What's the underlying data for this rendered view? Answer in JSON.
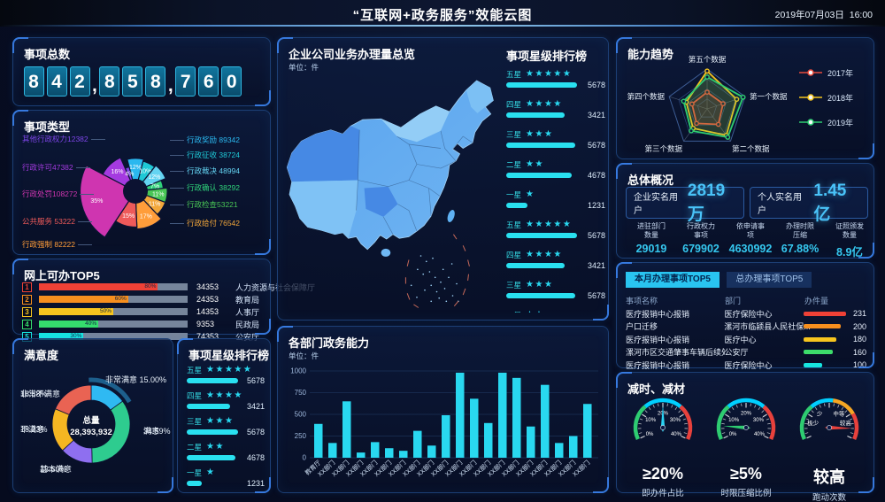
{
  "header": {
    "title": "“互联网+政务服务”效能云图",
    "datetime": "2019年07月03日  16:00"
  },
  "total_panel": {
    "title": "事项总数",
    "value": "842,858,760"
  },
  "rose_panel": {
    "title": "事项类型"
  },
  "online_panel": {
    "title": "网上可办TOP5"
  },
  "satisfaction_panel": {
    "title": "满意度",
    "center_label": "总量",
    "center_value": "28,393,932"
  },
  "star_left_panel": {
    "title": "事项星级排行榜"
  },
  "map_panel": {
    "title": "企业公司业务办理量总览",
    "unit": "单位：件"
  },
  "star_mid_panel": {
    "title": "事项星级排行榜"
  },
  "dept_panel": {
    "title": "各部门政务能力",
    "unit": "单位：件"
  },
  "radar_panel": {
    "title": "能力趋势"
  },
  "overview_panel": {
    "title": "总体概况",
    "boxes": [
      {
        "label": "企业实名用户",
        "value": "2819万"
      },
      {
        "label": "个人实名用户",
        "value": "1.45亿"
      }
    ],
    "stats": [
      {
        "line1": "进驻部门",
        "line2": "数量",
        "value": "29019"
      },
      {
        "line1": "行政权力",
        "line2": "事项",
        "value": "679902"
      },
      {
        "line1": "依申请事",
        "line2": "项",
        "value": "4630992"
      },
      {
        "line1": "办理时限",
        "line2": "压缩",
        "value": "67.88%"
      },
      {
        "line1": "证照颁发",
        "line2": "数量",
        "value": "8.9亿"
      }
    ]
  },
  "top5_panel": {
    "tabs": [
      {
        "label": "本月办理事项TOP5",
        "active": true
      },
      {
        "label": "总办理事项TOP5",
        "active": false
      }
    ]
  },
  "gauge_panel": {
    "title": "减时、减材"
  },
  "chart_data": [
    {
      "id": "item_types_rose",
      "type": "pie",
      "subtype": "nightingale-rose",
      "title": "事项类型",
      "slices": [
        {
          "label": "行政奖励",
          "value": 89342,
          "pct": 12,
          "color": "#2bb8ef",
          "display": "行政奖励 89342"
        },
        {
          "label": "行政征收",
          "value": 38724,
          "pct": 10,
          "color": "#1fc9d6",
          "display": "行政征收 38724"
        },
        {
          "label": "行政裁决",
          "value": 48994,
          "pct": 12,
          "color": "#64d4f2",
          "display": "行政裁决 48994"
        },
        {
          "label": "行政确认",
          "value": 38292,
          "pct": 7,
          "color": "#2fd27a",
          "display": "行政确认 38292"
        },
        {
          "label": "行政检查",
          "value": 53221,
          "pct": 11,
          "color": "#49c656",
          "display": "行政检查53221"
        },
        {
          "label": "行政给付",
          "value": 76542,
          "pct": 11,
          "color": "#f2a73b",
          "display": "行政给付 76542"
        },
        {
          "label": "行政强制",
          "value": 82222,
          "pct": 17,
          "color": "#ff9d3a",
          "display": "行政强制 82222"
        },
        {
          "label": "公共服务",
          "value": 53222,
          "pct": 15,
          "color": "#ee5a5a",
          "display": "公共服务 53222"
        },
        {
          "label": "行政处罚",
          "value": 108272,
          "pct": 35,
          "color": "#cf35b0",
          "display": "行政处罚108272"
        },
        {
          "label": "行政许可",
          "value": 47382,
          "pct": 16,
          "color": "#a43ae0",
          "display": "行政许可47382"
        },
        {
          "label": "其他行政权力",
          "value": 12382,
          "pct": 4,
          "color": "#7d45e8",
          "display": "其他行政权力12382"
        }
      ]
    },
    {
      "id": "online_top5",
      "type": "bar",
      "orientation": "horizontal",
      "title": "网上可办TOP5",
      "rows": [
        {
          "rank": 1,
          "pct": 80,
          "pct_label": "80%",
          "value": 34353,
          "dept": "人力资源与社会保障厅",
          "color": "#ef4136"
        },
        {
          "rank": 2,
          "pct": 60,
          "pct_label": "60%",
          "value": 24353,
          "dept": "教育局",
          "color": "#f78f1e"
        },
        {
          "rank": 3,
          "pct": 50,
          "pct_label": "50%",
          "value": 14353,
          "dept": "人事厅",
          "color": "#f7c51e"
        },
        {
          "rank": 4,
          "pct": 40,
          "pct_label": "40%",
          "value": 9353,
          "dept": "民政局",
          "color": "#35dd6d"
        },
        {
          "rank": 5,
          "pct": 30,
          "pct_label": "30%",
          "value": 74353,
          "dept": "公安厅",
          "color": "#17e5e0"
        }
      ]
    },
    {
      "id": "satisfaction",
      "type": "pie",
      "subtype": "donut",
      "title": "满意度",
      "total_label": "总量",
      "total_value": "28,393,932",
      "slices": [
        {
          "label": "非常满意",
          "pct": 15.0,
          "display": "15.00%",
          "color": "#2fb9f2",
          "highlight": true
        },
        {
          "label": "满意",
          "pct": 34.59,
          "display": "34.59%",
          "color": "#2ecc8f"
        },
        {
          "label": "基本满意",
          "pct": 13.6,
          "display": "13.60%",
          "color": "#8e6ff0"
        },
        {
          "label": "不满意",
          "pct": 18.23,
          "display": "18.23%",
          "color": "#f5b622"
        },
        {
          "label": "非常不满意",
          "pct": 18.58,
          "display": "18.58%",
          "color": "#e96353"
        }
      ]
    },
    {
      "id": "star_rank_left",
      "type": "bar",
      "title": "事项星级排行榜",
      "rows": [
        {
          "label": "五星",
          "stars": 5,
          "value": 5678,
          "pct": 100
        },
        {
          "label": "四星",
          "stars": 4,
          "value": 3421,
          "pct": 85
        },
        {
          "label": "三星",
          "stars": 3,
          "value": 5678,
          "pct": 100
        },
        {
          "label": "二星",
          "stars": 2,
          "value": 4678,
          "pct": 95
        },
        {
          "label": "一星",
          "stars": 1,
          "value": 1231,
          "pct": 30
        }
      ]
    },
    {
      "id": "star_rank_mid",
      "type": "bar",
      "title": "事项星级排行榜",
      "rows": [
        {
          "label": "五星",
          "stars": 5,
          "value": 5678,
          "pct": 100
        },
        {
          "label": "四星",
          "stars": 4,
          "value": 3421,
          "pct": 82
        },
        {
          "label": "三星",
          "stars": 3,
          "value": 5678,
          "pct": 97
        },
        {
          "label": "二星",
          "stars": 2,
          "value": 4678,
          "pct": 92
        },
        {
          "label": "一星",
          "stars": 1,
          "value": 1231,
          "pct": 30
        },
        {
          "label": "五星",
          "stars": 5,
          "value": 5678,
          "pct": 100
        },
        {
          "label": "四星",
          "stars": 4,
          "value": 3421,
          "pct": 82
        },
        {
          "label": "三星",
          "stars": 3,
          "value": 5678,
          "pct": 97
        },
        {
          "label": "二星",
          "stars": 2,
          "value": 4678,
          "pct": 92
        }
      ]
    },
    {
      "id": "dept_capability",
      "type": "bar",
      "title": "各部门政务能力",
      "ylabel": "件",
      "ylim": [
        0,
        1000
      ],
      "yticks": [
        0,
        250,
        500,
        750,
        1000
      ],
      "bar_color": "#29d8f0",
      "categories": [
        "教育厅",
        "XX部门",
        "XX部门",
        "XX部门",
        "XX部门",
        "XX部门",
        "XX部门",
        "XX部门",
        "XX部门",
        "XX部门",
        "XX部门",
        "XX部门",
        "XX部门",
        "XX部门",
        "XX部门",
        "XX部门",
        "XX部门",
        "XX部门",
        "XX部门",
        "XX部门"
      ],
      "values": [
        390,
        170,
        650,
        60,
        180,
        110,
        80,
        310,
        140,
        490,
        980,
        680,
        400,
        980,
        920,
        360,
        840,
        170,
        250,
        620
      ]
    },
    {
      "id": "capability_trend",
      "type": "radar",
      "title": "能力趋势",
      "max": 100,
      "axes": [
        "第一个数据",
        "第二个数据",
        "第三个数据",
        "第四个数据",
        "第五个数据"
      ],
      "series": [
        {
          "name": "2017年",
          "color": "#e84b3c",
          "values": [
            42,
            48,
            45,
            40,
            42
          ]
        },
        {
          "name": "2018年",
          "color": "#f5c51e",
          "values": [
            78,
            82,
            60,
            55,
            95
          ]
        },
        {
          "name": "2019年",
          "color": "#2ecc71",
          "values": [
            95,
            88,
            68,
            62,
            80
          ]
        }
      ]
    },
    {
      "id": "monthly_top5",
      "type": "table",
      "columns": [
        "事项名称",
        "部门",
        "办件量"
      ],
      "rows": [
        {
          "name": "医疗报销中心报销",
          "dept": "医疗保险中心",
          "value": 231,
          "color": "#ef4136"
        },
        {
          "name": "户口迁移",
          "dept": "漯河市临颍县人民社保...",
          "value": 200,
          "color": "#f78f1e"
        },
        {
          "name": "医疗报销中心报销",
          "dept": "医疗中心",
          "value": 180,
          "color": "#f7c51e"
        },
        {
          "name": "漯河市区交通肇事车辆后续处...",
          "dept": "公安厅",
          "value": 160,
          "color": "#3ddc6a"
        },
        {
          "name": "医疗报销中心报销",
          "dept": "医疗保险中心",
          "value": 100,
          "color": "#17e5e0"
        }
      ]
    },
    {
      "id": "gauges",
      "type": "gauge",
      "items": [
        {
          "value": "≥20%",
          "label": "即办件占比",
          "needle_deg": 0,
          "needle_color": "#29d3f5",
          "ticks": [
            "0%",
            "10%",
            "20%",
            "30%",
            "40%"
          ],
          "zones": [],
          "segments": [
            {
              "from": -115,
              "to": -40,
              "color": "#2ecc71"
            },
            {
              "from": -40,
              "to": 40,
              "color": "#00cfff"
            },
            {
              "from": 40,
              "to": 115,
              "color": "#e8413c"
            }
          ]
        },
        {
          "value": "≥5%",
          "label": "时限压缩比例",
          "needle_deg": -86,
          "needle_color": "#2ecc71",
          "ticks": [
            "0%",
            "10%",
            "20%",
            "30%",
            "40%"
          ],
          "zones": [],
          "segments": [
            {
              "from": -115,
              "to": -40,
              "color": "#2ecc71"
            },
            {
              "from": -40,
              "to": 40,
              "color": "#00cfff"
            },
            {
              "from": 40,
              "to": 115,
              "color": "#e8413c"
            }
          ]
        },
        {
          "value": "较高",
          "label": "跑动次数",
          "needle_deg": 92,
          "needle_color": "#e8413c",
          "ticks": [],
          "zones": [
            "极少",
            "少",
            "中等",
            "较高"
          ],
          "segments": [
            {
              "from": -115,
              "to": -40,
              "color": "#2ecc71"
            },
            {
              "from": -40,
              "to": 8,
              "color": "#00cfff"
            },
            {
              "from": 8,
              "to": 60,
              "color": "#f5a623"
            },
            {
              "from": 60,
              "to": 115,
              "color": "#e8413c"
            }
          ]
        }
      ]
    }
  ]
}
